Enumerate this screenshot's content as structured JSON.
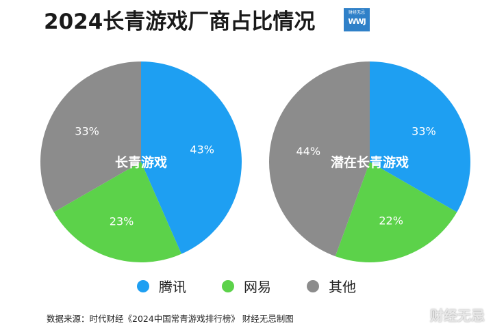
{
  "title": "2024长青游戏厂商占比情况",
  "logo": {
    "top_text": "财经无忌",
    "bottom_text": "WWJ"
  },
  "chart_data": [
    {
      "type": "pie",
      "title": "长青游戏",
      "categories": [
        "腾讯",
        "网易",
        "其他"
      ],
      "values": [
        43,
        23,
        33
      ],
      "labels": [
        "43%",
        "23%",
        "33%"
      ]
    },
    {
      "type": "pie",
      "title": "潜在长青游戏",
      "categories": [
        "腾讯",
        "网易",
        "其他"
      ],
      "values": [
        33,
        22,
        44
      ],
      "labels": [
        "33%",
        "22%",
        "44%"
      ]
    }
  ],
  "legend": [
    {
      "label": "腾讯",
      "color": "#1e9ff2"
    },
    {
      "label": "网易",
      "color": "#5cd24a"
    },
    {
      "label": "其他",
      "color": "#8c8c8c"
    }
  ],
  "source": "数据来源：时代财经《2024中国常青游戏排行榜》 财经无忌制图",
  "watermark": "财经无忌"
}
